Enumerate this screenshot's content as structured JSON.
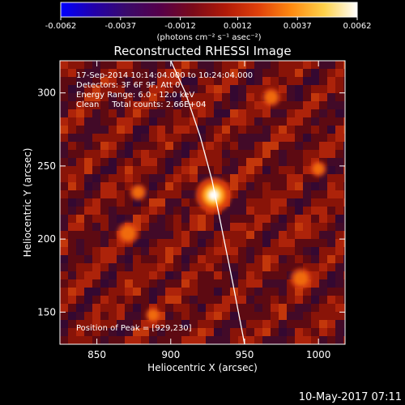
{
  "colorbar": {
    "min": -0.0062,
    "max": 0.0062,
    "tick_labels": [
      "-0.0062",
      "-0.0037",
      "-0.0012",
      "0.0012",
      "0.0037",
      "0.0062"
    ],
    "unit_label": "(photons cm⁻² s⁻¹ asec⁻²)",
    "colors": [
      "#0000ff",
      "#2200aa",
      "#3a0a6a",
      "#55004a",
      "#7a0a1a",
      "#b01a08",
      "#e0400a",
      "#ff8a10",
      "#ffd24a",
      "#ffffff"
    ]
  },
  "chart_data": {
    "type": "heatmap",
    "title": "Reconstructed RHESSI Image",
    "xlabel": "Heliocentric X (arcsec)",
    "ylabel": "Heliocentric Y (arcsec)",
    "xlim": [
      825,
      1018
    ],
    "ylim": [
      128,
      322
    ],
    "xticks": [
      850,
      900,
      950,
      1000
    ],
    "yticks": [
      150,
      200,
      250,
      300
    ],
    "annotations": [
      "17-Sep-2014 10:14:04.000 to 10:24:04.000",
      "Detectors: 3F 6F 9F, Att 0",
      "Energy Range: 6.0 - 12.0 keV",
      "Clean     Total counts: 2.66E+04"
    ],
    "peak_label": "Position of Peak = [929,230]",
    "peak": {
      "x": 929,
      "y": 230
    },
    "limb_curve": [
      [
        900,
        322
      ],
      [
        910,
        300
      ],
      [
        920,
        270
      ],
      [
        928,
        240
      ],
      [
        935,
        205
      ],
      [
        942,
        170
      ],
      [
        950,
        128
      ]
    ],
    "sources": [
      {
        "x": 929,
        "y": 230,
        "value": 0.0062
      },
      {
        "x": 871,
        "y": 204,
        "value": 0.003
      },
      {
        "x": 988,
        "y": 173,
        "value": 0.0028
      },
      {
        "x": 968,
        "y": 297,
        "value": 0.0022
      },
      {
        "x": 878,
        "y": 232,
        "value": 0.0018
      },
      {
        "x": 1000,
        "y": 248,
        "value": 0.0016
      },
      {
        "x": 888,
        "y": 148,
        "value": 0.0014
      }
    ]
  },
  "footer": {
    "timestamp": "10-May-2017 07:11"
  }
}
